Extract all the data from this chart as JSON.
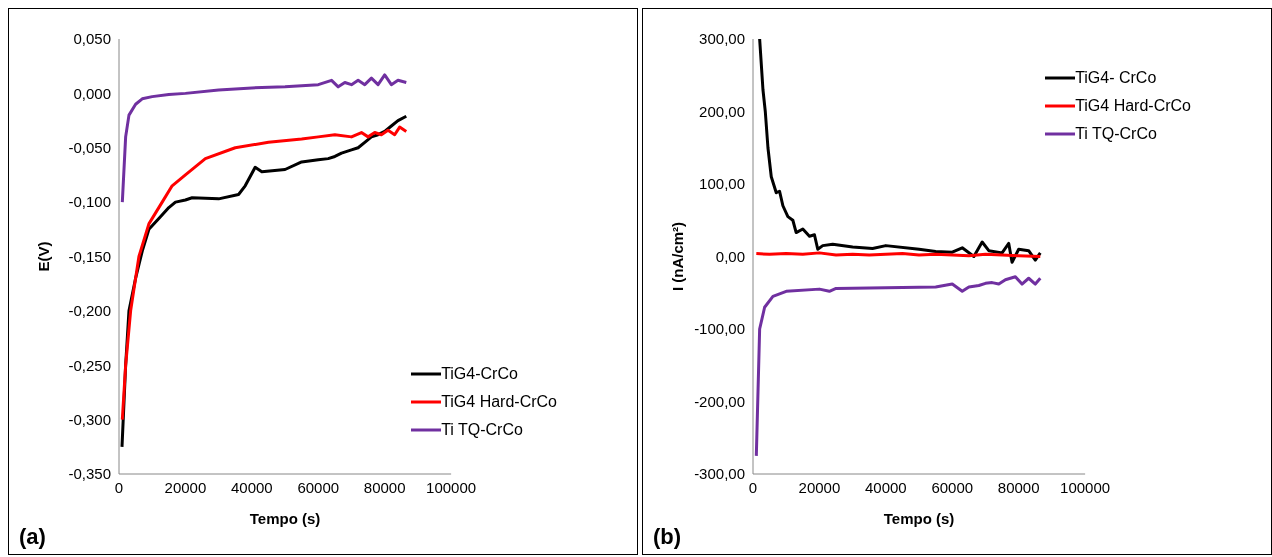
{
  "chart_data": [
    {
      "type": "line",
      "xlabel": "Tempo (s)",
      "ylabel": "E(V)",
      "annotations": [
        "(a)"
      ],
      "legend": "bottom right",
      "marker": "none",
      "line_style": "solid",
      "xlim": [
        0,
        100000
      ],
      "xticks": [
        0,
        20000,
        40000,
        60000,
        80000,
        100000
      ],
      "ylim": [
        -0.35,
        0.05
      ],
      "yticks": [
        {
          "value": -0.35,
          "label": "-0,350"
        },
        {
          "value": -0.3,
          "label": "-0,300"
        },
        {
          "value": -0.25,
          "label": "-0,250"
        },
        {
          "value": -0.2,
          "label": "-0,200"
        },
        {
          "value": -0.15,
          "label": "-0,150"
        },
        {
          "value": -0.1,
          "label": "-0,100"
        },
        {
          "value": -0.05,
          "label": "-0,050"
        },
        {
          "value": 0,
          "label": "0,000"
        },
        {
          "value": 0.05,
          "label": "0,050"
        }
      ],
      "series": [
        {
          "name": "TiG4-CrCo",
          "color": "#000000",
          "x": [
            900,
            2000,
            3000,
            5000,
            7000,
            9000,
            12000,
            15000,
            17000,
            20000,
            22000,
            30000,
            36000,
            38000,
            41000,
            43000,
            50000,
            55000,
            60000,
            63000,
            65000,
            67000,
            70000,
            72000,
            74000,
            76000,
            78000,
            80000,
            82000,
            84000,
            86500
          ],
          "values": [
            -0.325,
            -0.25,
            -0.2,
            -0.17,
            -0.145,
            -0.125,
            -0.115,
            -0.105,
            -0.1,
            -0.098,
            -0.096,
            -0.097,
            -0.093,
            -0.085,
            -0.068,
            -0.072,
            -0.07,
            -0.063,
            -0.061,
            -0.06,
            -0.058,
            -0.055,
            -0.052,
            -0.05,
            -0.045,
            -0.04,
            -0.038,
            -0.035,
            -0.03,
            -0.025,
            -0.021
          ]
        },
        {
          "name": "TiG4 Hard-CrCo",
          "color": "#ff0000",
          "x": [
            1000,
            2000,
            3500,
            6000,
            9000,
            13000,
            16000,
            20000,
            26000,
            35000,
            45000,
            55000,
            60000,
            65000,
            70000,
            73000,
            75000,
            77000,
            79000,
            81000,
            83000,
            84500,
            86500
          ],
          "values": [
            -0.3,
            -0.25,
            -0.2,
            -0.15,
            -0.12,
            -0.1,
            -0.085,
            -0.075,
            -0.06,
            -0.05,
            -0.045,
            -0.042,
            -0.04,
            -0.038,
            -0.04,
            -0.036,
            -0.04,
            -0.036,
            -0.038,
            -0.034,
            -0.038,
            -0.031,
            -0.035
          ]
        },
        {
          "name": "Ti TQ-CrCo",
          "color": "#7030a0",
          "x": [
            1000,
            2000,
            3000,
            5000,
            7000,
            10000,
            15000,
            20000,
            30000,
            40000,
            50000,
            60000,
            64000,
            66000,
            68000,
            70000,
            72000,
            74000,
            76000,
            78000,
            80000,
            82000,
            84000,
            86500
          ],
          "values": [
            -0.1,
            -0.04,
            -0.02,
            -0.01,
            -0.005,
            -0.003,
            -0.001,
            0,
            0.003,
            0.005,
            0.006,
            0.008,
            0.012,
            0.006,
            0.01,
            0.008,
            0.012,
            0.008,
            0.014,
            0.008,
            0.017,
            0.008,
            0.012,
            0.01
          ]
        }
      ]
    },
    {
      "type": "line",
      "xlabel": "Tempo (s)",
      "ylabel": "I (nA/cm²)",
      "annotations": [
        "(b)"
      ],
      "legend": "top right",
      "marker": "none",
      "line_style": "solid",
      "xlim": [
        0,
        100000
      ],
      "xticks": [
        0,
        20000,
        40000,
        60000,
        80000,
        100000
      ],
      "ylim": [
        -300,
        300
      ],
      "yticks": [
        {
          "value": -300,
          "label": "-300,00"
        },
        {
          "value": -200,
          "label": "-200,00"
        },
        {
          "value": -100,
          "label": "-100,00"
        },
        {
          "value": 0,
          "label": "0,00"
        },
        {
          "value": 100,
          "label": "100,00"
        },
        {
          "value": 200,
          "label": "200,00"
        },
        {
          "value": 300,
          "label": "300,00"
        }
      ],
      "series": [
        {
          "name": "TiG4- CrCo",
          "color": "#000000",
          "x": [
            2000,
            3000,
            3700,
            4500,
            5500,
            7000,
            8000,
            9000,
            10500,
            12000,
            13000,
            15000,
            17000,
            18500,
            19500,
            21000,
            24000,
            30000,
            36000,
            40000,
            50000,
            55000,
            60000,
            63000,
            66500,
            69000,
            71000,
            75000,
            77000,
            78000,
            80000,
            83000,
            85000,
            86500
          ],
          "values": [
            300,
            230,
            200,
            150,
            110,
            88,
            90,
            70,
            55,
            50,
            33,
            38,
            28,
            30,
            10,
            15,
            17,
            13,
            11,
            15,
            10,
            7,
            6,
            12,
            0,
            20,
            8,
            5,
            18,
            -8,
            10,
            8,
            -5,
            5
          ]
        },
        {
          "name": "TiG4 Hard-CrCo",
          "color": "#ff0000",
          "x": [
            1000,
            5000,
            10000,
            15000,
            20000,
            25000,
            30000,
            35000,
            40000,
            45000,
            50000,
            55000,
            60000,
            65000,
            70000,
            75000,
            80000,
            86500
          ],
          "values": [
            4,
            3,
            4,
            3,
            5,
            2,
            3,
            2,
            3,
            4,
            2,
            3,
            2,
            1,
            3,
            2,
            1,
            0
          ]
        },
        {
          "name": "Ti TQ-CrCo",
          "color": "#7030a0",
          "x": [
            1000,
            2000,
            3500,
            6000,
            10000,
            20000,
            23000,
            25000,
            40000,
            55000,
            60000,
            63000,
            65000,
            68000,
            70000,
            72000,
            74000,
            76000,
            79000,
            81000,
            83000,
            85000,
            86500
          ],
          "values": [
            -275,
            -100,
            -70,
            -55,
            -48,
            -45,
            -48,
            -44,
            -43,
            -42,
            -38,
            -48,
            -42,
            -40,
            -37,
            -36,
            -38,
            -32,
            -28,
            -38,
            -30,
            -38,
            -30
          ]
        }
      ]
    }
  ]
}
